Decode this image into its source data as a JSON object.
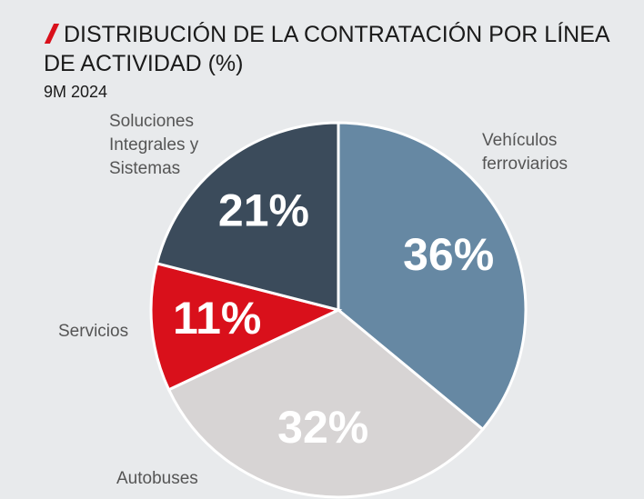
{
  "chart_data": {
    "type": "pie",
    "title": "DISTRIBUCIÓN DE LA CONTRATACIÓN POR LÍNEA DE ACTIVIDAD (%)",
    "subtitle": "9M 2024",
    "categories": [
      "Vehículos ferroviarios",
      "Autobuses",
      "Servicios",
      "Soluciones Integrales y Sistemas"
    ],
    "values": [
      36,
      32,
      11,
      21
    ],
    "value_labels": [
      "36%",
      "32%",
      "11%",
      "21%"
    ],
    "colors": [
      "#6688a3",
      "#d7d4d4",
      "#d9101b",
      "#3b4b5b"
    ]
  }
}
